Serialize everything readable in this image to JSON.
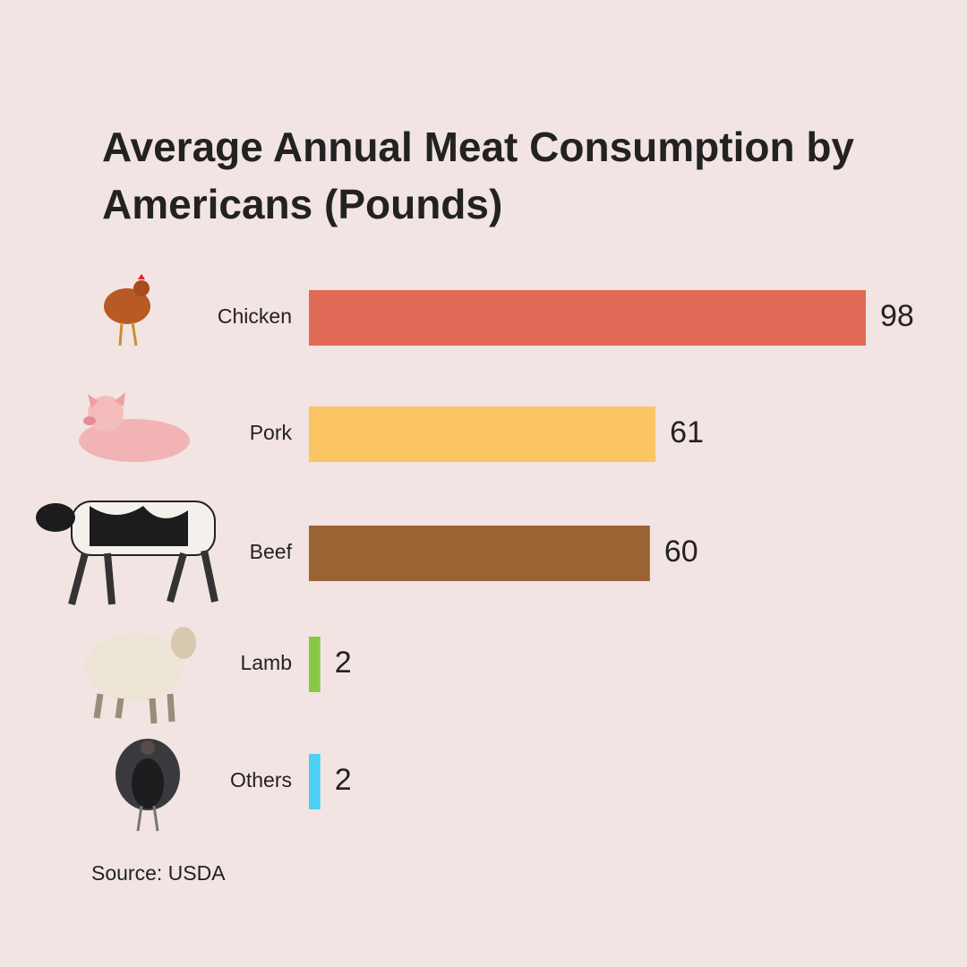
{
  "chart_data": {
    "type": "hbar",
    "title": "Average Annual Meat Consumption by Americans (Pounds)",
    "categories": [
      "Chicken",
      "Pork",
      "Beef",
      "Lamb",
      "Others"
    ],
    "values": [
      98,
      61,
      60,
      2,
      2
    ],
    "colors": [
      "#e06a55",
      "#fbc563",
      "#9b6234",
      "#85c943",
      "#4dd0f5"
    ],
    "source": "Source: USDA"
  }
}
